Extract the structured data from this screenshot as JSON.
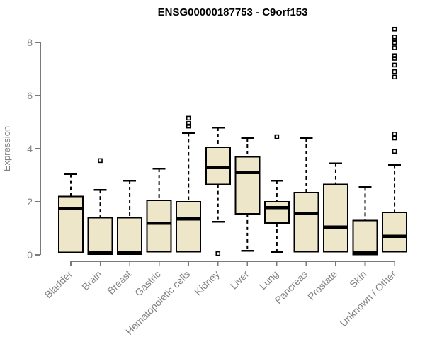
{
  "chart_data": {
    "type": "box",
    "title": "ENSG00000187753 - C9orf153",
    "ylabel": "Expression",
    "xlabel": "",
    "ylim": [
      0,
      8.5
    ],
    "yticks": [
      0,
      2,
      4,
      6,
      8
    ],
    "grid": false,
    "legend": null,
    "colors": {
      "box_fill": "#EDE6C9",
      "box_border": "#000000",
      "median": "#000000",
      "whisker": "#000000",
      "axis_line": "#7a7a7a",
      "axis_text": "#828282",
      "title_text": "#000000"
    },
    "categories": [
      "Bladder",
      "Brain",
      "Breast",
      "Gastric",
      "Hematopoietic cells",
      "Kidney",
      "Liver",
      "Lung",
      "Pancreas",
      "Prostate",
      "Skin",
      "Unknown / Other"
    ],
    "boxes": [
      {
        "label": "Bladder",
        "q1": 0.1,
        "median": 1.75,
        "q3": 2.2,
        "whisker_low": 0.1,
        "whisker_high": 3.05,
        "outliers": []
      },
      {
        "label": "Brain",
        "q1": 0.03,
        "median": 0.1,
        "q3": 1.4,
        "whisker_low": 0.03,
        "whisker_high": 2.45,
        "outliers": [
          3.55
        ]
      },
      {
        "label": "Breast",
        "q1": 0.03,
        "median": 0.08,
        "q3": 1.4,
        "whisker_low": 0.03,
        "whisker_high": 2.8,
        "outliers": []
      },
      {
        "label": "Gastric",
        "q1": 0.12,
        "median": 1.2,
        "q3": 2.05,
        "whisker_low": 0.12,
        "whisker_high": 3.25,
        "outliers": []
      },
      {
        "label": "Hematopoietic cells",
        "q1": 0.12,
        "median": 1.35,
        "q3": 2.0,
        "whisker_low": 0.12,
        "whisker_high": 4.6,
        "outliers": [
          5.15,
          4.95,
          4.85
        ]
      },
      {
        "label": "Kidney",
        "q1": 2.65,
        "median": 3.3,
        "q3": 4.05,
        "whisker_low": 1.25,
        "whisker_high": 4.8,
        "outliers": [
          0.05
        ]
      },
      {
        "label": "Liver",
        "q1": 1.55,
        "median": 3.1,
        "q3": 3.7,
        "whisker_low": 0.15,
        "whisker_high": 4.4,
        "outliers": []
      },
      {
        "label": "Lung",
        "q1": 1.2,
        "median": 1.78,
        "q3": 2.0,
        "whisker_low": 0.12,
        "whisker_high": 2.8,
        "outliers": [
          4.45
        ]
      },
      {
        "label": "Pancreas",
        "q1": 0.12,
        "median": 1.55,
        "q3": 2.35,
        "whisker_low": 0.12,
        "whisker_high": 4.4,
        "outliers": []
      },
      {
        "label": "Prostate",
        "q1": 0.12,
        "median": 1.05,
        "q3": 2.65,
        "whisker_low": 0.12,
        "whisker_high": 3.45,
        "outliers": []
      },
      {
        "label": "Skin",
        "q1": 0.02,
        "median": 0.1,
        "q3": 1.3,
        "whisker_low": 0.02,
        "whisker_high": 2.55,
        "outliers": []
      },
      {
        "label": "Unknown / Other",
        "q1": 0.12,
        "median": 0.7,
        "q3": 1.6,
        "whisker_low": 0.12,
        "whisker_high": 3.4,
        "outliers": [
          8.5,
          8.2,
          8.1,
          8.0,
          7.8,
          7.5,
          7.4,
          7.15,
          6.9,
          6.7,
          4.55,
          4.4,
          3.9
        ]
      }
    ]
  }
}
